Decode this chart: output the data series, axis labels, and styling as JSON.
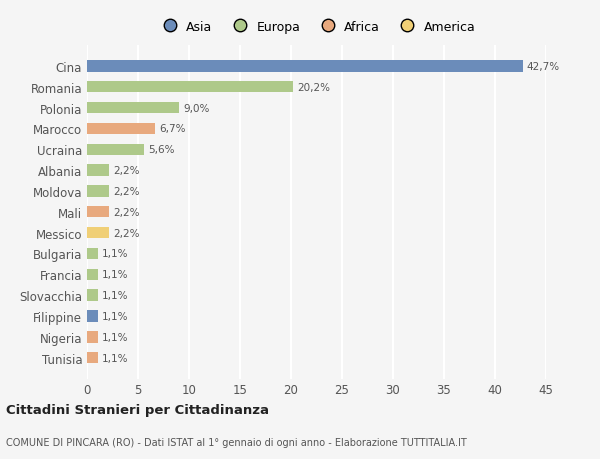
{
  "categories": [
    "Tunisia",
    "Nigeria",
    "Filippine",
    "Slovacchia",
    "Francia",
    "Bulgaria",
    "Messico",
    "Mali",
    "Moldova",
    "Albania",
    "Ucraina",
    "Marocco",
    "Polonia",
    "Romania",
    "Cina"
  ],
  "values": [
    1.1,
    1.1,
    1.1,
    1.1,
    1.1,
    1.1,
    2.2,
    2.2,
    2.2,
    2.2,
    5.6,
    6.7,
    9.0,
    20.2,
    42.7
  ],
  "labels": [
    "1,1%",
    "1,1%",
    "1,1%",
    "1,1%",
    "1,1%",
    "1,1%",
    "2,2%",
    "2,2%",
    "2,2%",
    "2,2%",
    "5,6%",
    "6,7%",
    "9,0%",
    "20,2%",
    "42,7%"
  ],
  "colors": [
    "#e8a97e",
    "#e8a97e",
    "#6b8cba",
    "#aec98a",
    "#aec98a",
    "#aec98a",
    "#f0cf76",
    "#e8a97e",
    "#aec98a",
    "#aec98a",
    "#aec98a",
    "#e8a97e",
    "#aec98a",
    "#aec98a",
    "#6b8cba"
  ],
  "legend_labels": [
    "Asia",
    "Europa",
    "Africa",
    "America"
  ],
  "legend_colors": [
    "#6b8cba",
    "#aec98a",
    "#e8a97e",
    "#f0cf76"
  ],
  "title1": "Cittadini Stranieri per Cittadinanza",
  "title2": "COMUNE DI PINCARA (RO) - Dati ISTAT al 1° gennaio di ogni anno - Elaborazione TUTTITALIA.IT",
  "xlim": [
    0,
    45
  ],
  "xticks": [
    0,
    5,
    10,
    15,
    20,
    25,
    30,
    35,
    40,
    45
  ],
  "background_color": "#f5f5f5",
  "grid_color": "#ffffff",
  "bar_height": 0.55
}
